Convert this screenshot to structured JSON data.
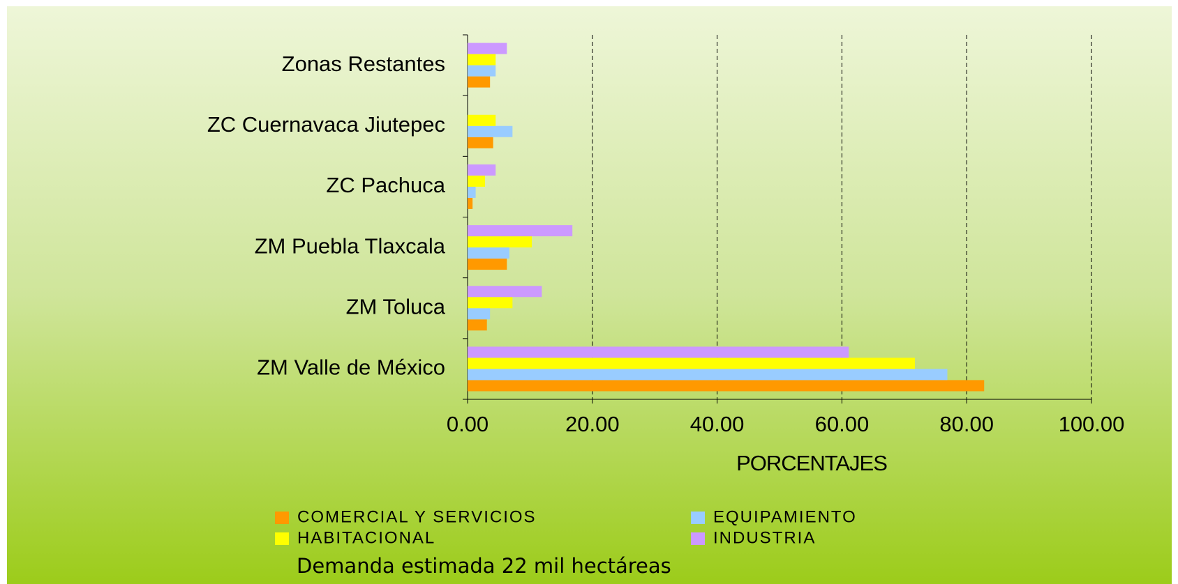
{
  "chart_data": {
    "type": "bar",
    "orientation": "horizontal",
    "xlabel": "PORCENTAJES",
    "note": "Demanda estimada 22 mil hectáreas",
    "categories": [
      "ZM Valle de México",
      "ZM Toluca",
      "ZM Puebla Tlaxcala",
      "ZC Pachuca",
      "ZC Cuernavaca Jiutepec",
      "Zonas Restantes"
    ],
    "series": [
      {
        "name": "COMERCIAL Y SERVICIOS",
        "color": "#ff9900",
        "values": [
          82.8,
          3.1,
          6.3,
          0.8,
          4.1,
          3.6
        ]
      },
      {
        "name": "EQUIPAMIENTO",
        "color": "#99ccff",
        "values": [
          76.9,
          3.6,
          6.7,
          1.3,
          7.2,
          4.5
        ]
      },
      {
        "name": "HABITACIONAL",
        "color": "#ffff00",
        "values": [
          71.7,
          7.2,
          10.3,
          2.8,
          4.5,
          4.5
        ]
      },
      {
        "name": "INDUSTRIA",
        "color": "#cc99ff",
        "values": [
          61.1,
          11.9,
          16.8,
          4.5,
          0,
          6.3
        ]
      }
    ],
    "xlim": [
      0,
      100
    ],
    "xticks": [
      {
        "value": 0,
        "label": "0.00"
      },
      {
        "value": 20,
        "label": "20.00"
      },
      {
        "value": 40,
        "label": "40.00"
      },
      {
        "value": 60,
        "label": "60.00"
      },
      {
        "value": 80,
        "label": "80.00"
      },
      {
        "value": 100,
        "label": "100.00"
      }
    ],
    "grid": true
  }
}
